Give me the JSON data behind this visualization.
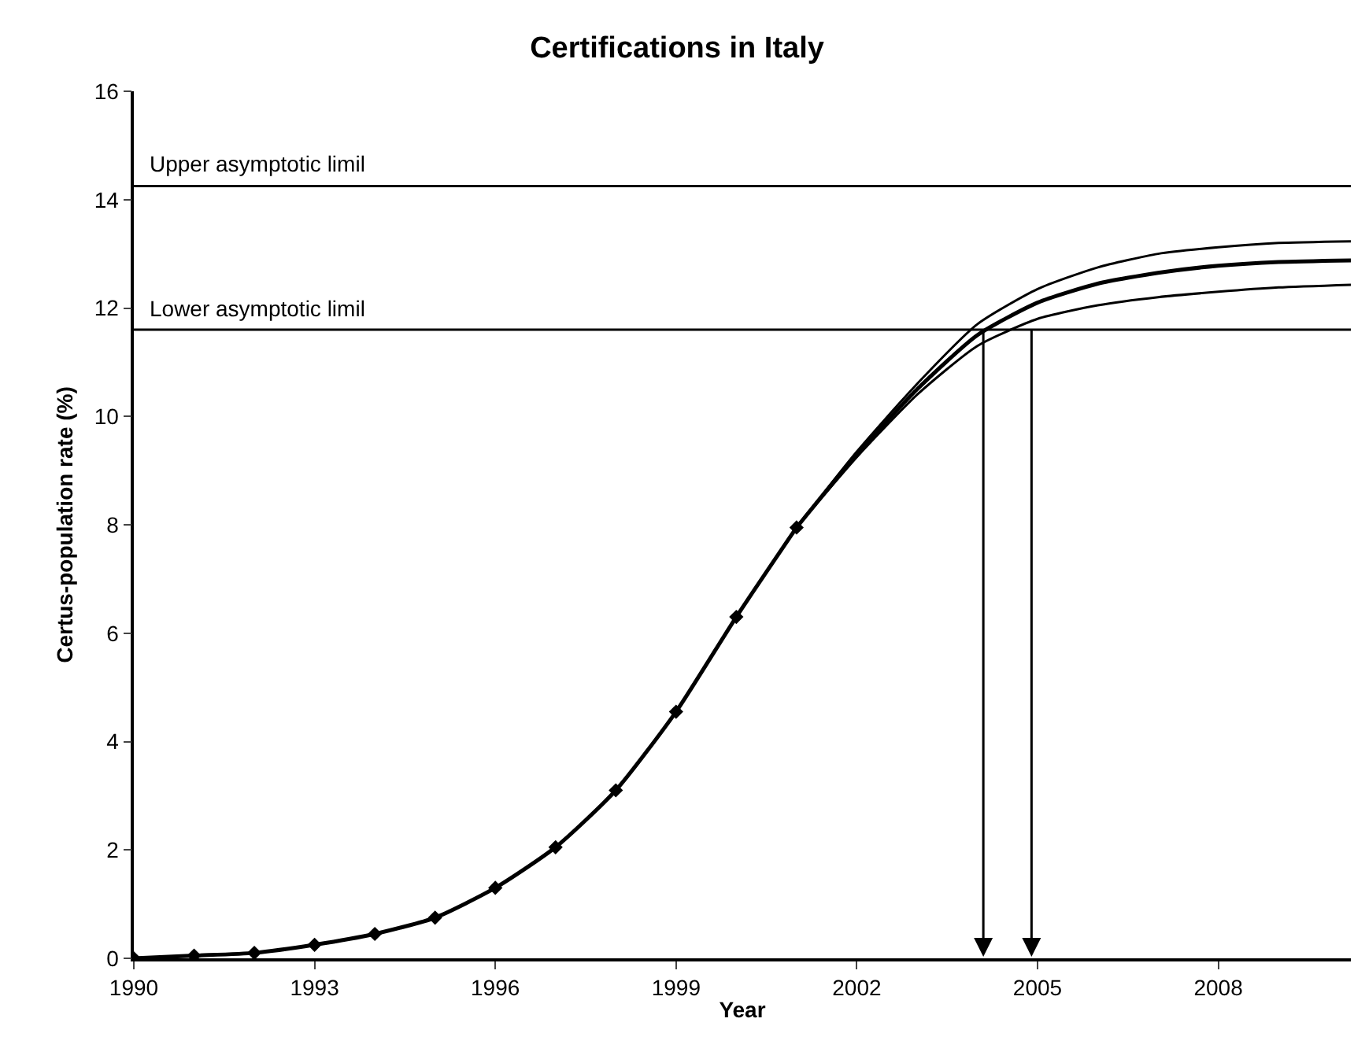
{
  "chart_data": {
    "type": "line",
    "title": "Certifications in Italy",
    "xlabel": "Year",
    "ylabel": "Certus-population rate (%)",
    "xlim": [
      1990,
      2010.2
    ],
    "xticks": [
      1990,
      1993,
      1996,
      1999,
      2002,
      2005,
      2008
    ],
    "ylim": [
      0,
      16
    ],
    "yticks": [
      0,
      2,
      4,
      6,
      8,
      10,
      12,
      14,
      16
    ],
    "grid": false,
    "series": [
      {
        "color": "#000000",
        "marker": "diamond",
        "x": [
          1990,
          1991,
          1992,
          1993,
          1994,
          1995,
          1996,
          1997,
          1998,
          1999,
          2000,
          2001
        ],
        "values": [
          0,
          0.05,
          0.1,
          0.25,
          0.45,
          0.75,
          1.3,
          2.05,
          3.1,
          4.55,
          6.3,
          7.95
        ]
      },
      {
        "color": "#000000",
        "marker": "none",
        "x": [
          2001,
          2002,
          2003,
          2004,
          2005,
          2006,
          2007,
          2008,
          2009,
          2010.2
        ],
        "values": [
          7.95,
          9.35,
          10.6,
          11.7,
          12.35,
          12.75,
          13.0,
          13.12,
          13.2,
          13.23
        ]
      },
      {
        "color": "#000000",
        "marker": "none",
        "x": [
          2001,
          2002,
          2003,
          2004,
          2005,
          2006,
          2007,
          2008,
          2009,
          2010.2
        ],
        "values": [
          7.95,
          9.3,
          10.5,
          11.5,
          12.1,
          12.45,
          12.65,
          12.78,
          12.85,
          12.88
        ]
      },
      {
        "color": "#000000",
        "marker": "none",
        "x": [
          2001,
          2002,
          2003,
          2004,
          2005,
          2006,
          2007,
          2008,
          2009,
          2010.2
        ],
        "values": [
          7.95,
          9.25,
          10.4,
          11.3,
          11.8,
          12.05,
          12.2,
          12.3,
          12.38,
          12.43
        ]
      }
    ],
    "ref_lines": [
      {
        "axis": "y",
        "value": 14.25,
        "label": "Upper asymptotic limil",
        "color": "#000000"
      },
      {
        "axis": "y",
        "value": 11.6,
        "label": "Lower asymptotic limil",
        "color": "#000000"
      },
      {
        "axis": "x",
        "value": 2004.1,
        "label": null,
        "color": "#000000"
      },
      {
        "axis": "x",
        "value": 2004.9,
        "label": null,
        "color": "#000000"
      }
    ]
  }
}
